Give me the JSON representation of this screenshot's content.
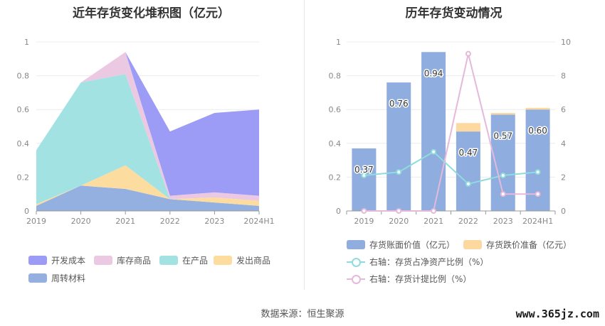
{
  "source_text": "数据来源：恒生聚源",
  "watermark": "www.365jz.com",
  "chart_data": [
    {
      "type": "area",
      "title": "近年存货变化堆积图（亿元）",
      "categories": [
        "2019",
        "2020",
        "2021",
        "2022",
        "2023",
        "2024H1"
      ],
      "ylim": [
        0,
        1
      ],
      "yticks": [
        "0",
        "0.2",
        "0.4",
        "0.6",
        "0.8",
        "1"
      ],
      "stacked": true,
      "legend_position": "bottom",
      "series": [
        {
          "name": "周转材料",
          "color": "#94b0e0",
          "values": [
            0.03,
            0.15,
            0.13,
            0.07,
            0.05,
            0.03
          ]
        },
        {
          "name": "发出商品",
          "color": "#fddca0",
          "values": [
            0.01,
            0.0,
            0.14,
            0.0,
            0.03,
            0.03
          ]
        },
        {
          "name": "在产品",
          "color": "#a3e2e3",
          "values": [
            0.32,
            0.61,
            0.54,
            0.0,
            0.0,
            0.0
          ]
        },
        {
          "name": "库存商品",
          "color": "#ecc9e2",
          "values": [
            0.0,
            0.0,
            0.13,
            0.02,
            0.03,
            0.03
          ]
        },
        {
          "name": "开发成本",
          "color": "#9c9cf7",
          "values": [
            0.0,
            0.0,
            0.0,
            0.38,
            0.47,
            0.51
          ]
        }
      ],
      "legend_order": [
        "开发成本",
        "库存商品",
        "在产品",
        "发出商品",
        "周转材料"
      ]
    },
    {
      "type": "bar",
      "title": "历年存货变动情况",
      "categories": [
        "2019",
        "2020",
        "2021",
        "2022",
        "2023",
        "2024H1"
      ],
      "ylim": [
        0,
        1
      ],
      "yticks": [
        "0",
        "0.2",
        "0.4",
        "0.6",
        "0.8",
        "1"
      ],
      "y2lim": [
        0,
        10
      ],
      "y2ticks": [
        "0",
        "2",
        "4",
        "6",
        "8",
        "10"
      ],
      "legend_position": "bottom",
      "bar_series": [
        {
          "name": "存货账面价值（亿元）",
          "color": "#8fadde",
          "values": [
            0.37,
            0.76,
            0.94,
            0.47,
            0.57,
            0.6
          ],
          "labels": [
            "0.37",
            "0.76",
            "0.94",
            "0.47",
            "0.57",
            "0.60"
          ]
        },
        {
          "name": "存货跌价准备（亿元）",
          "color": "#fdd9a0",
          "values": [
            0.0,
            0.0,
            0.0,
            0.05,
            0.01,
            0.01
          ]
        }
      ],
      "line_series": [
        {
          "name": "右轴：存货占净资产比例（%）",
          "color": "#8fdcdc",
          "values": [
            2.1,
            2.3,
            3.5,
            1.6,
            2.1,
            2.3
          ]
        },
        {
          "name": "右轴：存货计提比例（%）",
          "color": "#e6b8da",
          "values": [
            0.0,
            0.0,
            0.0,
            9.3,
            1.0,
            1.0
          ]
        }
      ]
    }
  ]
}
